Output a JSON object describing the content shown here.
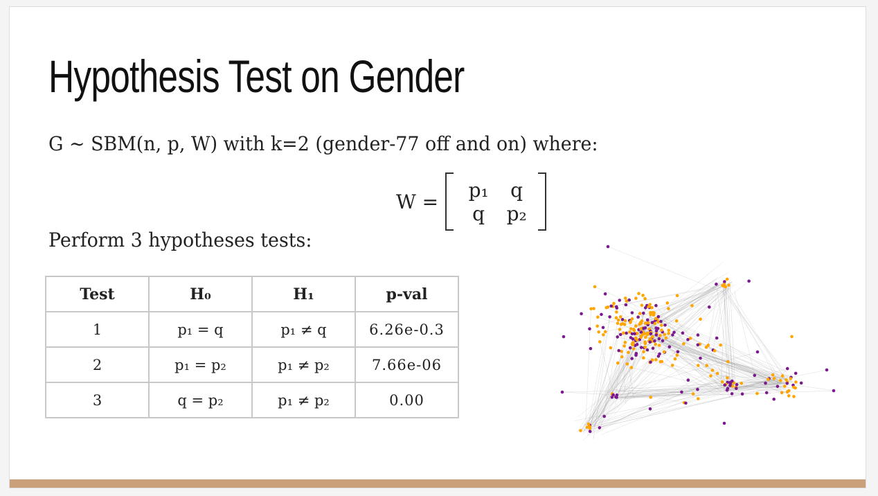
{
  "slide": {
    "title": "Hypothesis Test on Gender",
    "model_line": "G ~ SBM(n, p, W) with k=2 (gender-77 off and on) where:",
    "matrix": {
      "lhs": "W =",
      "cells": [
        "p₁",
        "q",
        "q",
        "p₂"
      ]
    },
    "intro_line": "Perform 3 hypotheses tests:",
    "table": {
      "headers": [
        "Test",
        "H₀",
        "H₁",
        "p-val"
      ],
      "rows": [
        {
          "test": "1",
          "h0": "p₁ = q",
          "h1": "p₁ ≠ q",
          "pval": "6.26e-0.3"
        },
        {
          "test": "2",
          "h0": "p₁ = p₂",
          "h1": "p₁ ≠ p₂",
          "pval": "7.66e-06"
        },
        {
          "test": "3",
          "h0": "q = p₂",
          "h1": "p₁ ≠ p₂",
          "pval": "0.00"
        }
      ]
    },
    "graph": {
      "colors": {
        "group_a": "#FFA500",
        "group_b": "#7B1A8C",
        "edge": "#9a9a9a"
      }
    },
    "footer_color": "#C9A07A"
  }
}
